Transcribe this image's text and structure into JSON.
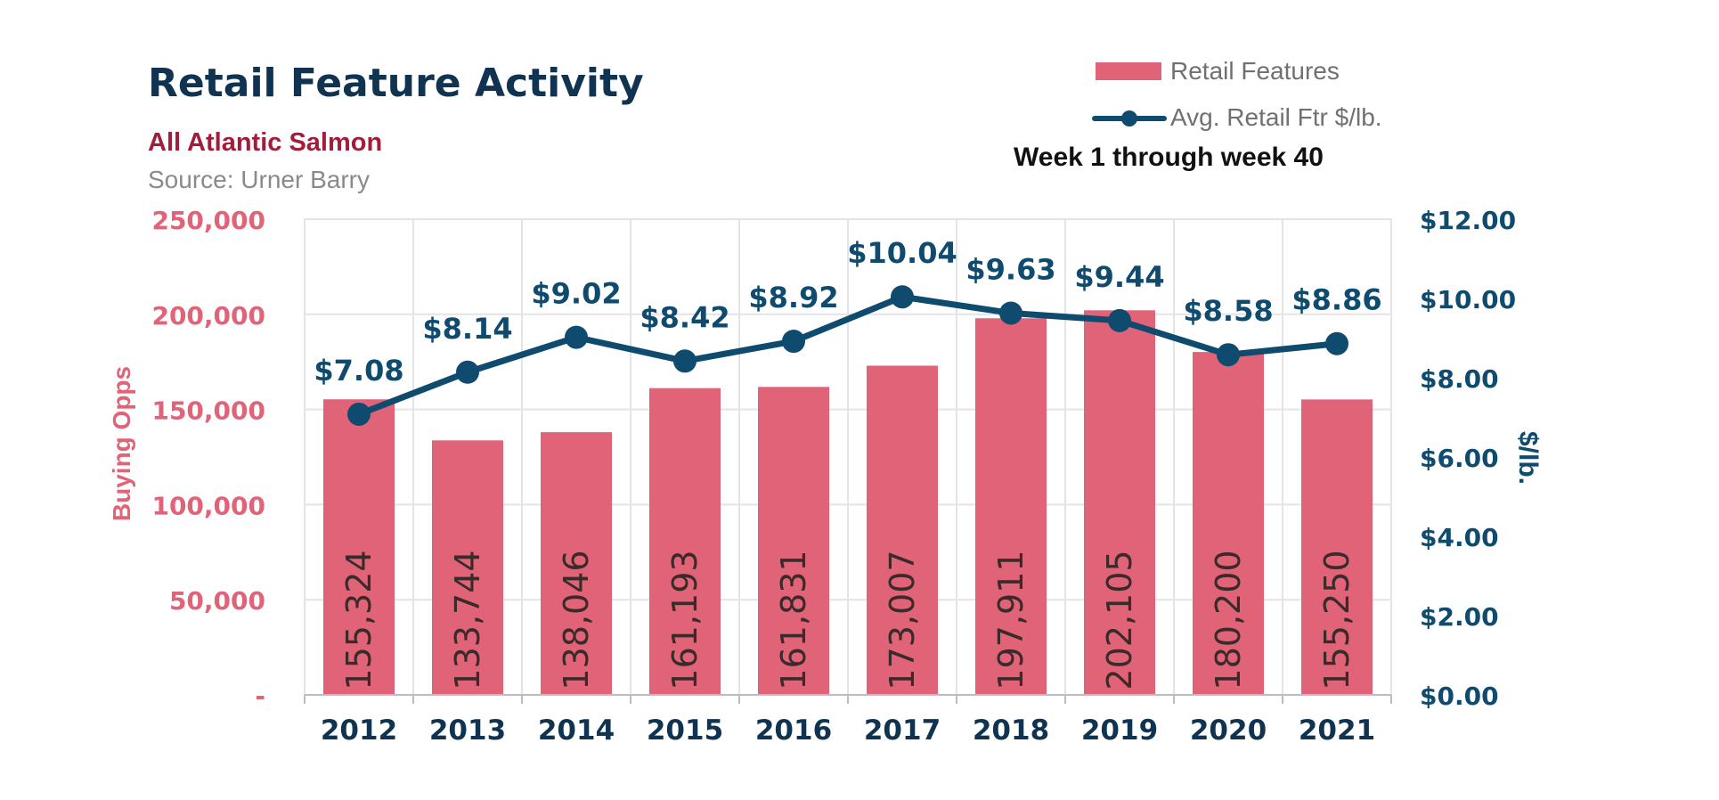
{
  "title": "Retail Feature Activity",
  "subtitle": "All Atlantic Salmon",
  "source": "Source: Urner Barry",
  "period": "Week 1 through week 40",
  "legend": {
    "bars": "Retail Features",
    "line": "Avg. Retail Ftr $/lb."
  },
  "colors": {
    "bar": "#e06378",
    "line": "#0f4b6e",
    "left_axis": "#e06378",
    "right_axis": "#0f4b6e",
    "title": "#0f3350",
    "subtitle": "#a11d3a"
  },
  "chart_data": {
    "type": "bar",
    "categories": [
      "2012",
      "2013",
      "2014",
      "2015",
      "2016",
      "2017",
      "2018",
      "2019",
      "2020",
      "2021"
    ],
    "series": [
      {
        "name": "Retail Features",
        "type": "bar",
        "axis": "left",
        "values": [
          155324,
          133744,
          138046,
          161193,
          161831,
          173007,
          197911,
          202105,
          180200,
          155250
        ],
        "labels": [
          "155,324",
          "133,744",
          "138,046",
          "161,193",
          "161,831",
          "173,007",
          "197,911",
          "202,105",
          "180,200",
          "155,250"
        ]
      },
      {
        "name": "Avg. Retail Ftr $/lb.",
        "type": "line",
        "axis": "right",
        "values": [
          7.08,
          8.14,
          9.02,
          8.42,
          8.92,
          10.04,
          9.63,
          9.44,
          8.58,
          8.86
        ],
        "labels": [
          "$7.08",
          "$8.14",
          "$9.02",
          "$8.42",
          "$8.92",
          "$10.04",
          "$9.63",
          "$9.44",
          "$8.58",
          "$8.86"
        ]
      }
    ],
    "ylabel": "Buying Opps",
    "ylim": [
      0,
      250000
    ],
    "yticks": [
      0,
      50000,
      100000,
      150000,
      200000,
      250000
    ],
    "ytick_labels": [
      "-",
      "50,000",
      "100,000",
      "150,000",
      "200,000",
      "250,000"
    ],
    "y2label": "$/lb.",
    "y2lim": [
      0,
      12
    ],
    "y2ticks": [
      0,
      2,
      4,
      6,
      8,
      10,
      12
    ],
    "y2tick_labels": [
      "$0.00",
      "$2.00",
      "$4.00",
      "$6.00",
      "$8.00",
      "$10.00",
      "$12.00"
    ],
    "grid": true
  }
}
